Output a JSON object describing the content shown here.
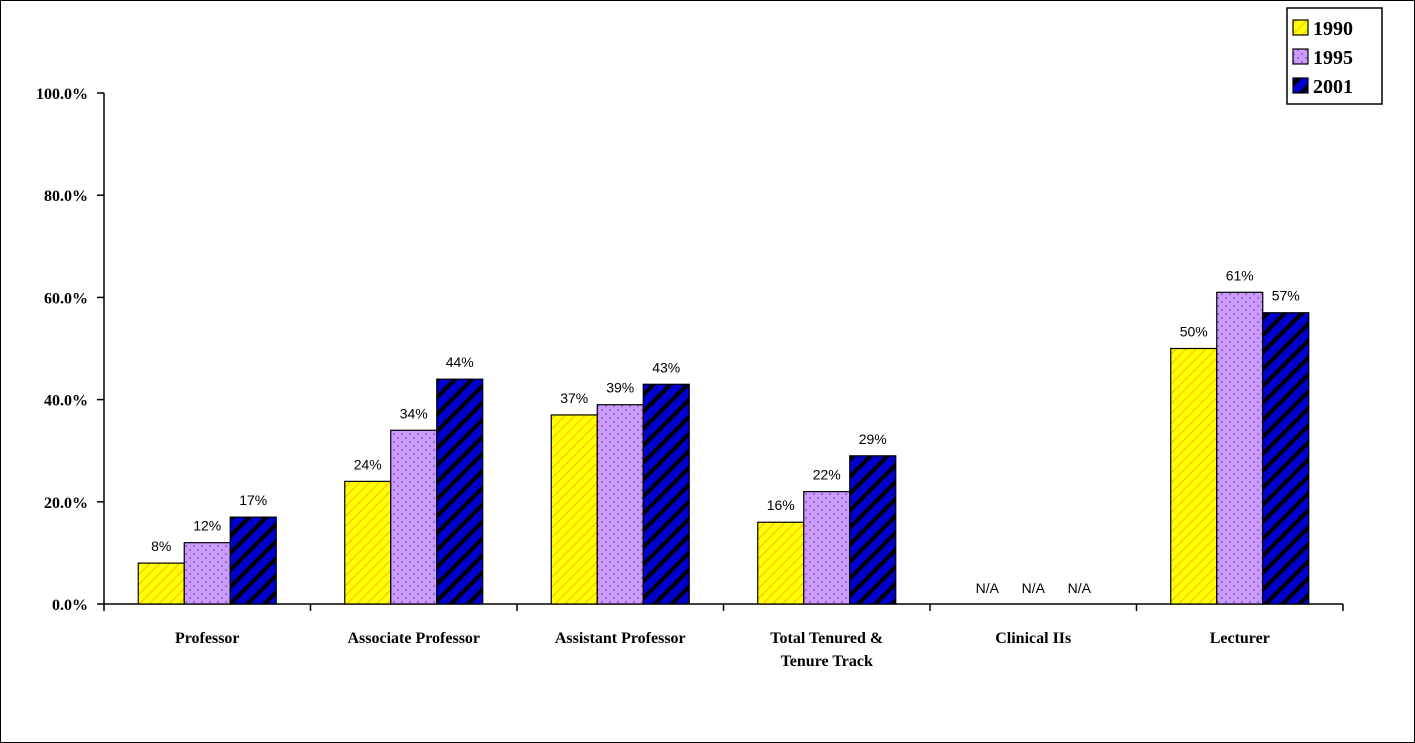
{
  "chart_data": {
    "type": "bar",
    "categories": [
      [
        "Professor"
      ],
      [
        "Associate Professor"
      ],
      [
        "Assistant Professor"
      ],
      [
        "Total Tenured &",
        "Tenure Track"
      ],
      [
        "Clinical IIs"
      ],
      [
        "Lecturer"
      ]
    ],
    "series": [
      {
        "name": "1990",
        "values": [
          8,
          24,
          37,
          16,
          null,
          50
        ],
        "labels": [
          "8%",
          "24%",
          "37%",
          "16%",
          "N/A",
          "50%"
        ],
        "fill": "#FFFF00",
        "stripe": "#FFA500",
        "pattern": "diagonal-hatch"
      },
      {
        "name": "1995",
        "values": [
          12,
          34,
          39,
          22,
          null,
          61
        ],
        "labels": [
          "12%",
          "34%",
          "39%",
          "22%",
          "N/A",
          "61%"
        ],
        "fill": "#CC99FF",
        "stripe": "#6B5A99",
        "pattern": "dots"
      },
      {
        "name": "2001",
        "values": [
          17,
          44,
          43,
          29,
          null,
          57
        ],
        "labels": [
          "17%",
          "44%",
          "43%",
          "29%",
          "N/A",
          "57%"
        ],
        "fill": "#000080",
        "stripe": "#000000",
        "pattern": "wide-diagonal-stripes"
      }
    ],
    "ylim": [
      0,
      100
    ],
    "yticks": [
      0,
      20,
      40,
      60,
      80,
      100
    ],
    "ytick_labels": [
      "0.0%",
      "20.0%",
      "40.0%",
      "60.0%",
      "80.0%",
      "100.0%"
    ],
    "legend_position": "top-right",
    "grid": false,
    "title": "",
    "xlabel": "",
    "ylabel": ""
  }
}
